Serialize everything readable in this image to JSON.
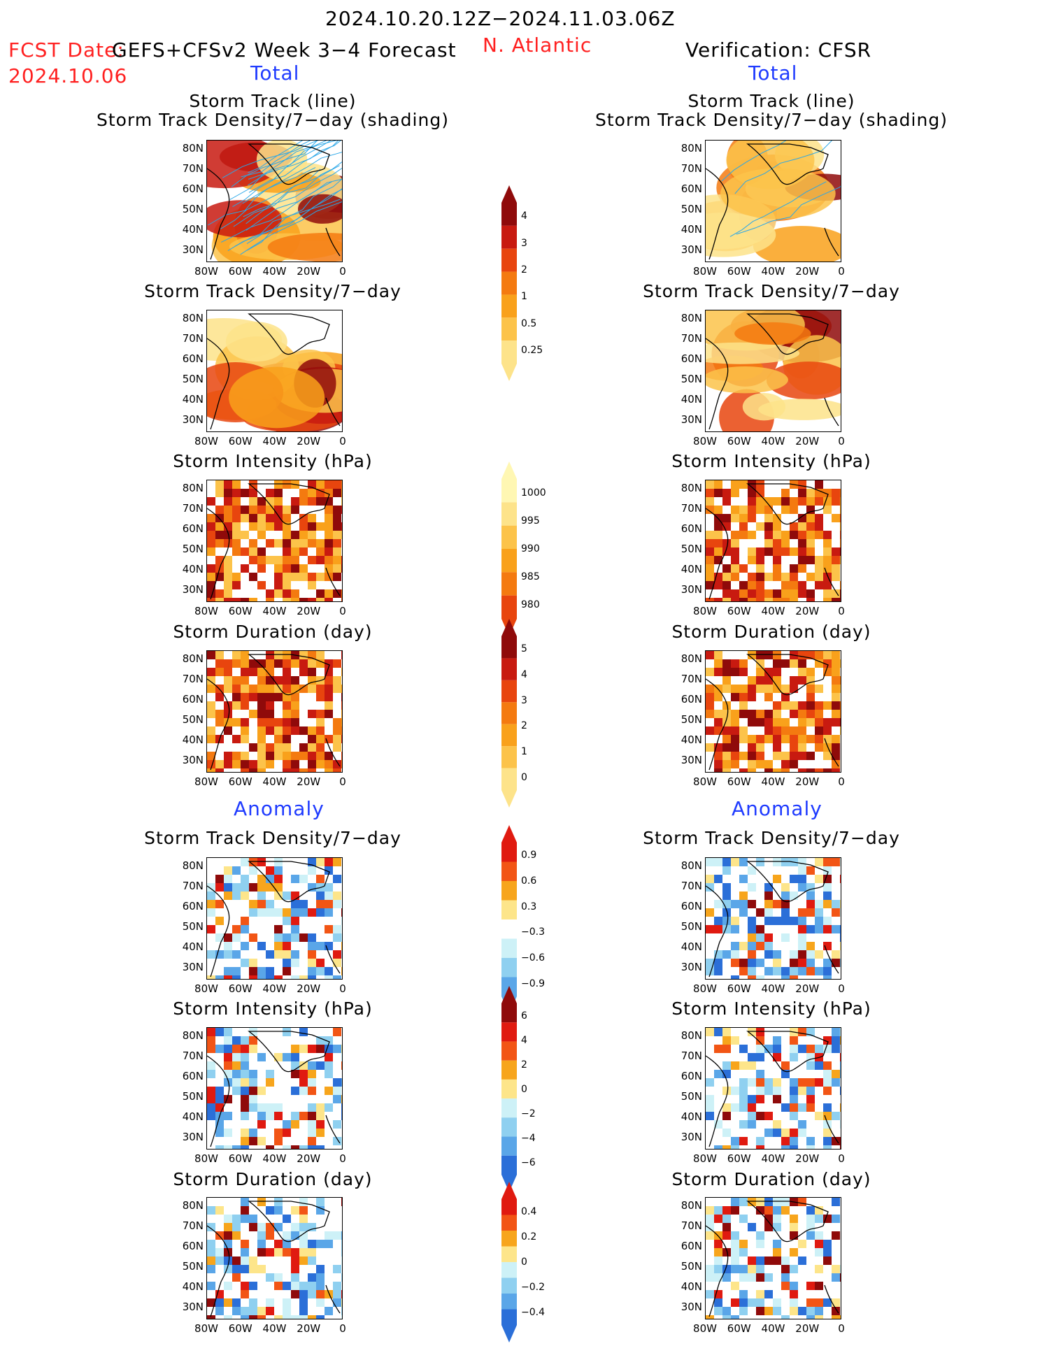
{
  "header": {
    "date_range": "2024.10.20.12Z−2024.11.03.06Z",
    "fcst_date_label": "FCST Date:",
    "fcst_date_value": "2024.10.06",
    "left_model": "GEFS+CFSv2 Week 3−4 Forecast",
    "region": "N. Atlantic",
    "verification": "Verification: CFSR",
    "total_left": "Total",
    "total_right": "Total",
    "anomaly_left": "Anomaly",
    "anomaly_right": "Anomaly"
  },
  "panels": {
    "track_title_1": "Storm Track (line)",
    "track_title_2": "Storm Track Density/7−day (shading)",
    "density": "Storm Track Density/7−day",
    "intensity": "Storm Intensity (hPa)",
    "duration": "Storm Duration (day)"
  },
  "axes": {
    "lat_ticks": [
      "80N",
      "70N",
      "60N",
      "50N",
      "40N",
      "30N"
    ],
    "lon_ticks": [
      "80W",
      "60W",
      "40W",
      "20W",
      "0"
    ]
  },
  "colorbars": {
    "density_total": [
      "4",
      "3",
      "2",
      "1",
      "0.5",
      "0.25"
    ],
    "intensity_total": [
      "1000",
      "995",
      "990",
      "985",
      "980"
    ],
    "duration_total": [
      "5",
      "4",
      "3",
      "2",
      "1",
      "0"
    ],
    "density_anom": [
      "0.9",
      "0.6",
      "0.3",
      "−0.3",
      "−0.6",
      "−0.9"
    ],
    "intensity_anom": [
      "6",
      "4",
      "2",
      "0",
      "−2",
      "−4",
      "−6"
    ],
    "duration_anom": [
      "0.4",
      "0.2",
      "0",
      "−0.2",
      "−0.4"
    ]
  },
  "colors": {
    "total_scale": [
      "#fff7b3",
      "#fde38a",
      "#fcc34a",
      "#f9a11b",
      "#f47a10",
      "#e8450e",
      "#c81a10",
      "#8f0a0a"
    ],
    "anom_warm": [
      "#fde58a",
      "#f7a51c",
      "#f25515",
      "#e01a10",
      "#8f0a0a"
    ],
    "anom_cool": [
      "#cdf1f7",
      "#8fd0f0",
      "#5aa6e8",
      "#2b6fd8"
    ],
    "track_line": "#2aa7e8",
    "title_red": "#ff2020",
    "title_blue": "#1f3bff"
  }
}
